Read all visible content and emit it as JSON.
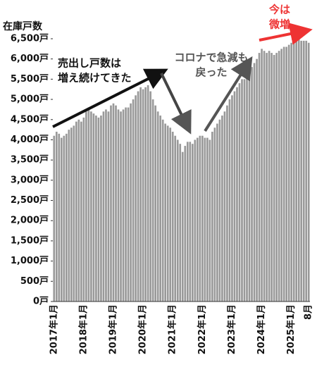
{
  "chart_data": {
    "type": "bar",
    "y_label": "在庫戸数",
    "color": "#999999",
    "annotations": [
      [
        "売出し戸数は",
        "増え続けてきた"
      ],
      [
        "コロナで急減も",
        "戻った"
      ],
      [
        "今は",
        "微増"
      ]
    ],
    "annotation_colors": [
      "#111111",
      "#555555",
      "#ee3333"
    ],
    "categories": [
      "2017年1月",
      null,
      null,
      null,
      null,
      null,
      null,
      null,
      null,
      null,
      null,
      null,
      "2018年1月",
      null,
      null,
      null,
      null,
      null,
      null,
      null,
      null,
      null,
      null,
      null,
      "2019年1月",
      null,
      null,
      null,
      null,
      null,
      null,
      null,
      null,
      null,
      null,
      null,
      "2020年1月",
      null,
      null,
      null,
      null,
      null,
      null,
      null,
      null,
      null,
      null,
      null,
      "2021年1月",
      null,
      null,
      null,
      null,
      null,
      null,
      null,
      null,
      null,
      null,
      null,
      "2022年1月",
      null,
      null,
      null,
      null,
      null,
      null,
      null,
      null,
      null,
      null,
      null,
      "2023年1月",
      null,
      null,
      null,
      null,
      null,
      null,
      null,
      null,
      null,
      null,
      null,
      "2024年1月",
      null,
      null,
      null,
      null,
      null,
      null,
      null,
      null,
      null,
      null,
      null,
      "2025年1月",
      null,
      null,
      null,
      null,
      null,
      null,
      "8月"
    ],
    "values": [
      4100,
      4200,
      4150,
      4050,
      4100,
      4150,
      4250,
      4300,
      4350,
      4450,
      4500,
      4450,
      4550,
      4700,
      4800,
      4700,
      4650,
      4600,
      4550,
      4600,
      4700,
      4750,
      4700,
      4850,
      4900,
      4850,
      4750,
      4700,
      4750,
      4800,
      4800,
      4900,
      5000,
      5100,
      5200,
      5300,
      5250,
      5300,
      5350,
      5200,
      5000,
      4850,
      4700,
      4600,
      4500,
      4400,
      4350,
      4300,
      4200,
      4100,
      4000,
      3900,
      3700,
      3850,
      3950,
      3950,
      3900,
      4000,
      4050,
      4100,
      4100,
      4050,
      4050,
      4000,
      4200,
      4300,
      4400,
      4500,
      4600,
      4700,
      4850,
      5000,
      5100,
      5200,
      5300,
      5400,
      5500,
      5500,
      5600,
      5700,
      5800,
      5900,
      6000,
      6150,
      6250,
      6200,
      6150,
      6200,
      6150,
      6100,
      6150,
      6200,
      6250,
      6300,
      6300,
      6350,
      6400,
      6450,
      6450,
      6500,
      6450,
      6450,
      6450,
      6400
    ],
    "ylim": [
      0,
      6500
    ],
    "yticks": [
      {
        "value": 0,
        "label": "0戸"
      },
      {
        "value": 500,
        "label": "500戸"
      },
      {
        "value": 1000,
        "label": "1,000戸"
      },
      {
        "value": 1500,
        "label": "1,500戸"
      },
      {
        "value": 2000,
        "label": "2,000戸"
      },
      {
        "value": 2500,
        "label": "2,500戸"
      },
      {
        "value": 3000,
        "label": "3,000戸"
      },
      {
        "value": 3500,
        "label": "3,500戸"
      },
      {
        "value": 4000,
        "label": "4,000戸"
      },
      {
        "value": 4500,
        "label": "4,500戸"
      },
      {
        "value": 5000,
        "label": "5,000戸"
      },
      {
        "value": 5500,
        "label": "5,500戸"
      },
      {
        "value": 6000,
        "label": "6,000戸"
      },
      {
        "value": 6500,
        "label": "6,500戸"
      }
    ]
  }
}
